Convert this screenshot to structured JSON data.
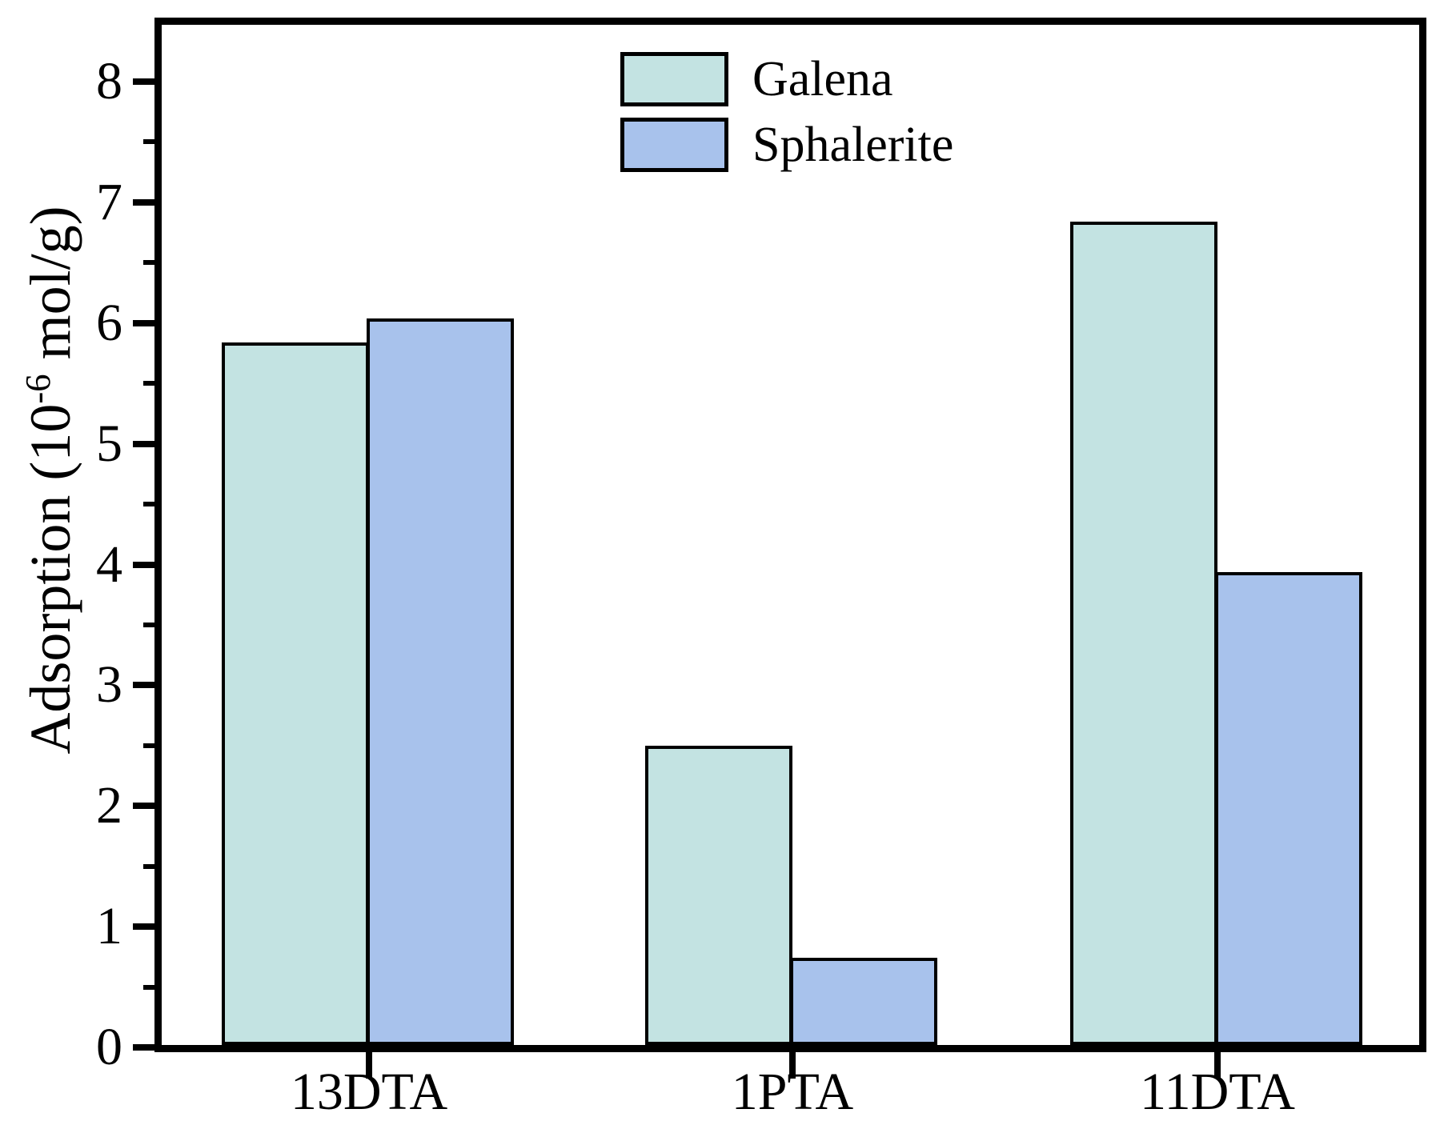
{
  "figure": {
    "background": "#ffffff",
    "y_axis": {
      "title_prefix": "Adsorption (10",
      "title_exponent": "-6",
      "title_suffix": " mol/g)",
      "tick_labels": [
        "0",
        "1",
        "2",
        "3",
        "4",
        "5",
        "6",
        "7",
        "8"
      ]
    },
    "x_axis": {
      "tick_labels": [
        "13DTA",
        "1PTA",
        "11DTA"
      ]
    },
    "legend": {
      "items": [
        {
          "label": "Galena",
          "color": "#c3e3e2"
        },
        {
          "label": "Sphalerite",
          "color": "#a8c2ec"
        }
      ]
    }
  },
  "chart_data": {
    "type": "bar",
    "categories": [
      "13DTA",
      "1PTA",
      "11DTA"
    ],
    "series": [
      {
        "name": "Galena",
        "color": "#c3e3e2",
        "values": [
          5.82,
          2.48,
          6.82
        ]
      },
      {
        "name": "Sphalerite",
        "color": "#a8c2ec",
        "values": [
          6.02,
          0.72,
          3.92
        ]
      }
    ],
    "title": "",
    "xlabel": "",
    "ylabel": "Adsorption (10^-6 mol/g)",
    "ylim": [
      0,
      8.53
    ],
    "ytick_interval": 1,
    "minor_tick_interval": 0.5,
    "bar_edge_color": "#000000",
    "grid": false,
    "legend_position": "inside-top-center"
  }
}
